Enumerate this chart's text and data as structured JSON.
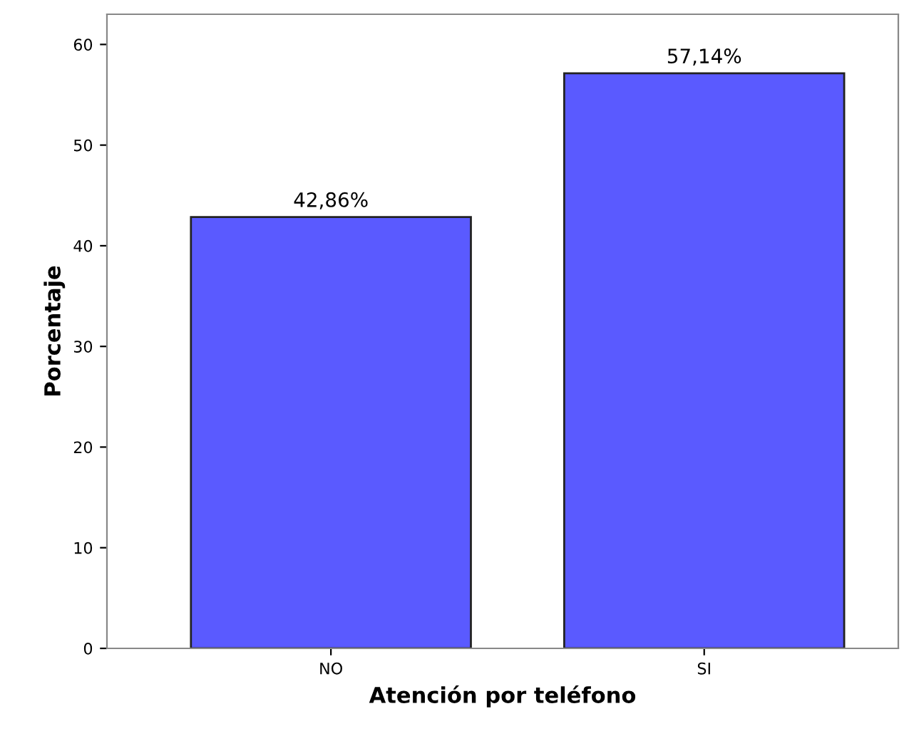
{
  "chart_data": {
    "type": "bar",
    "xlabel": "Atención por teléfono",
    "ylabel": "Porcentaje",
    "categories": [
      "NO",
      "SI"
    ],
    "values": [
      42.86,
      57.14
    ],
    "value_labels": [
      "42,86%",
      "57,14%"
    ],
    "color": "#5a5aff",
    "ylim": [
      0,
      63
    ],
    "yticks": [
      0,
      10,
      20,
      30,
      40,
      50,
      60
    ],
    "grid": false,
    "legend": false
  }
}
